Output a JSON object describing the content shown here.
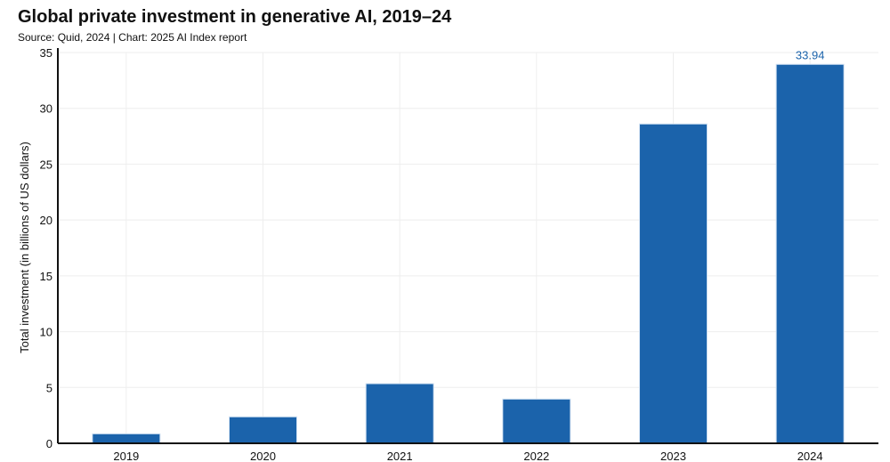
{
  "chart_data": {
    "type": "bar",
    "title": "Global private investment in generative AI, 2019–24",
    "subtitle": "Source: Quid, 2024 | Chart: 2025 AI Index report",
    "xlabel": "",
    "ylabel": "Total investment (in billions of US dollars)",
    "categories": [
      "2019",
      "2020",
      "2021",
      "2022",
      "2023",
      "2024"
    ],
    "values": [
      0.85,
      2.37,
      5.34,
      3.96,
      28.6,
      33.94
    ],
    "data_labels": {
      "2024": "33.94"
    },
    "ylim": [
      0,
      35
    ],
    "yticks": [
      0,
      5,
      10,
      15,
      20,
      25,
      30,
      35
    ],
    "grid": true,
    "bar_color": "#1b63ab",
    "label_color": "#1b63ab"
  }
}
